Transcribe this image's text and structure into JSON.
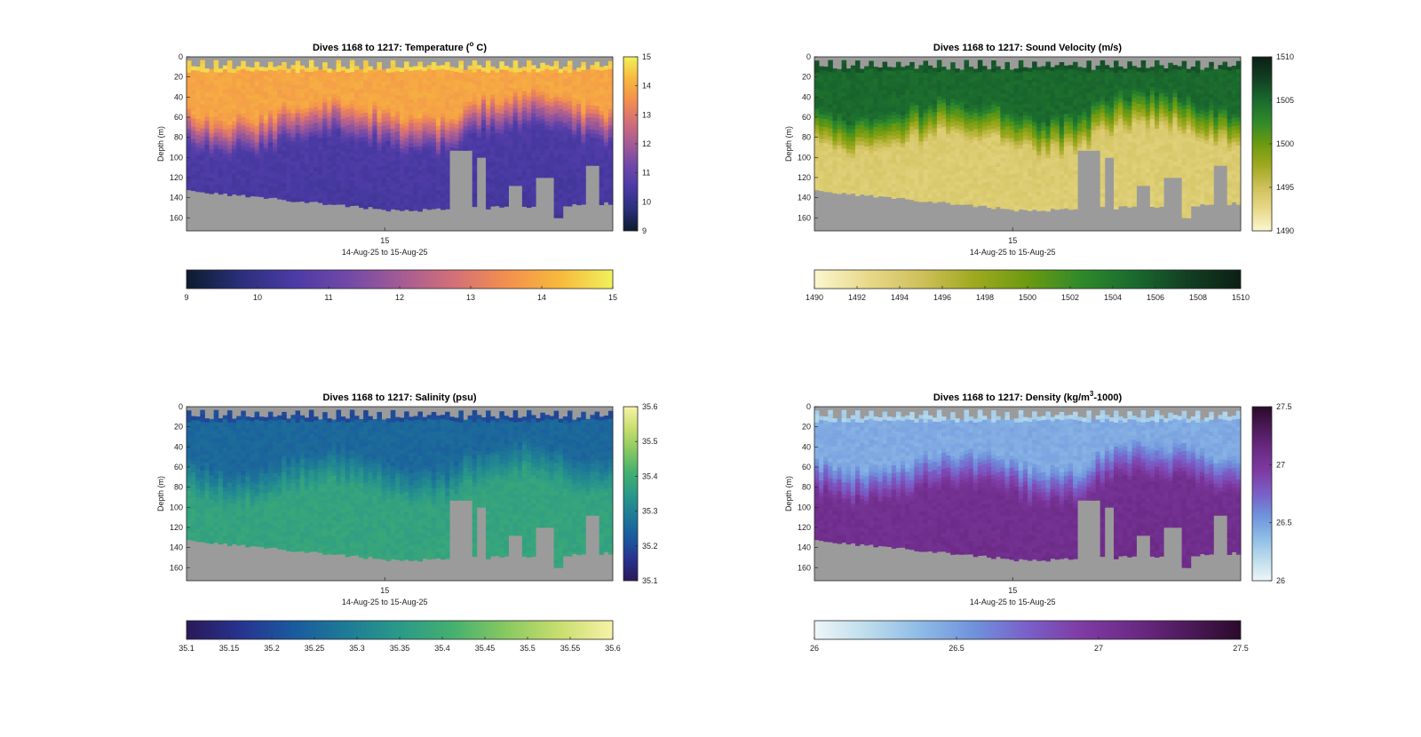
{
  "chart_data": [
    {
      "type": "heatmap",
      "title": "Dives 1168 to 1217: Temperature (",
      "title_sup": "o",
      "title_suffix": " C)",
      "ylabel": "Depth (m)",
      "xlabel": "14-Aug-25 to 15-Aug-25",
      "x_ticks": [
        "15"
      ],
      "y_ticks": [
        0,
        20,
        40,
        60,
        80,
        100,
        120,
        140,
        160
      ],
      "ylim": [
        0,
        173
      ],
      "y_reversed": true,
      "clim": [
        9,
        15
      ],
      "colorbar_side_ticks": [
        "9",
        "10",
        "11",
        "12",
        "13",
        "14",
        "15"
      ],
      "colorbar_bottom_ticks": [
        "9",
        "10",
        "11",
        "12",
        "13",
        "14",
        "15"
      ],
      "colormap": [
        "#0d1b2e",
        "#2a2f7a",
        "#4b3aa5",
        "#7048a8",
        "#a35b95",
        "#d36f78",
        "#f38f4e",
        "#f7b93d",
        "#f1f15a"
      ],
      "mask_color": "#9b9b9b",
      "layers": {
        "surface": 14.6,
        "mixed": 13.9,
        "thermocline_depth_m": 60,
        "deep": 10.6,
        "bottom": 10.3
      },
      "source_dives": [
        1168,
        1217
      ]
    },
    {
      "type": "heatmap",
      "title": "Dives 1168 to 1217: Sound Velocity (m/s)",
      "ylabel": "Depth (m)",
      "xlabel": "14-Aug-25 to 15-Aug-25",
      "x_ticks": [
        "15"
      ],
      "y_ticks": [
        0,
        20,
        40,
        60,
        80,
        100,
        120,
        140,
        160
      ],
      "ylim": [
        0,
        173
      ],
      "y_reversed": true,
      "clim": [
        1490,
        1510
      ],
      "colorbar_side_ticks": [
        "1490",
        "1495",
        "1500",
        "1505",
        "1510"
      ],
      "colorbar_bottom_ticks": [
        "1490",
        "1492",
        "1494",
        "1496",
        "1498",
        "1500",
        "1502",
        "1504",
        "1506",
        "1508",
        "1510"
      ],
      "colormap": [
        "#fbf6cf",
        "#e8d98a",
        "#cfc05b",
        "#9fa91f",
        "#6c9a10",
        "#2f8a2a",
        "#1a6a2e",
        "#123f22",
        "#0b1f14"
      ],
      "mask_color": "#9b9b9b",
      "layers": {
        "surface": 1506.2,
        "mixed": 1505.0,
        "thermocline_depth_m": 60,
        "deep": 1494.0,
        "bottom": 1493.6
      },
      "source_dives": [
        1168,
        1217
      ]
    },
    {
      "type": "heatmap",
      "title": "Dives 1168 to 1217: Salinity (psu)",
      "ylabel": "Depth (m)",
      "xlabel": "14-Aug-25 to 15-Aug-25",
      "x_ticks": [
        "15"
      ],
      "y_ticks": [
        0,
        20,
        40,
        60,
        80,
        100,
        120,
        140,
        160
      ],
      "ylim": [
        0,
        173
      ],
      "y_reversed": true,
      "clim": [
        35.1,
        35.6
      ],
      "colorbar_side_ticks": [
        "35.1",
        "35.2",
        "35.3",
        "35.4",
        "35.5",
        "35.6"
      ],
      "colorbar_bottom_ticks": [
        "35.1",
        "35.15",
        "35.2",
        "35.25",
        "35.3",
        "35.35",
        "35.4",
        "35.45",
        "35.5",
        "35.55",
        "35.6"
      ],
      "colormap": [
        "#2a1858",
        "#27338f",
        "#1a5a9e",
        "#1e7b96",
        "#2a9a88",
        "#45b06f",
        "#88c960",
        "#c9de6e",
        "#f7f2a8"
      ],
      "mask_color": "#9b9b9b",
      "layers": {
        "surface": 35.2,
        "mixed": 35.25,
        "thermocline_depth_m": 60,
        "deep": 35.37,
        "bottom": 35.38
      },
      "source_dives": [
        1168,
        1217
      ]
    },
    {
      "type": "heatmap",
      "title": "Dives 1168 to 1217: Density (kg/m",
      "title_sup": "3",
      "title_suffix": "-1000)",
      "ylabel": "Depth (m)",
      "xlabel": "14-Aug-25 to 15-Aug-25",
      "x_ticks": [
        "15"
      ],
      "y_ticks": [
        0,
        20,
        40,
        60,
        80,
        100,
        120,
        140,
        160
      ],
      "ylim": [
        0,
        173
      ],
      "y_reversed": true,
      "clim": [
        26,
        27.5
      ],
      "colorbar_side_ticks": [
        "26",
        "26.5",
        "27",
        "27.5"
      ],
      "colorbar_bottom_ticks": [
        "26",
        "26.5",
        "27",
        "27.5"
      ],
      "colormap": [
        "#eef6f8",
        "#bcdcec",
        "#8dbbe6",
        "#6f92dc",
        "#7a5fc8",
        "#7e3ca4",
        "#6c2a86",
        "#4d1a5a",
        "#2a0a2a"
      ],
      "mask_color": "#9b9b9b",
      "layers": {
        "surface": 26.25,
        "mixed": 26.45,
        "thermocline_depth_m": 60,
        "deep": 27.05,
        "bottom": 27.1
      },
      "source_dives": [
        1168,
        1217
      ]
    }
  ]
}
